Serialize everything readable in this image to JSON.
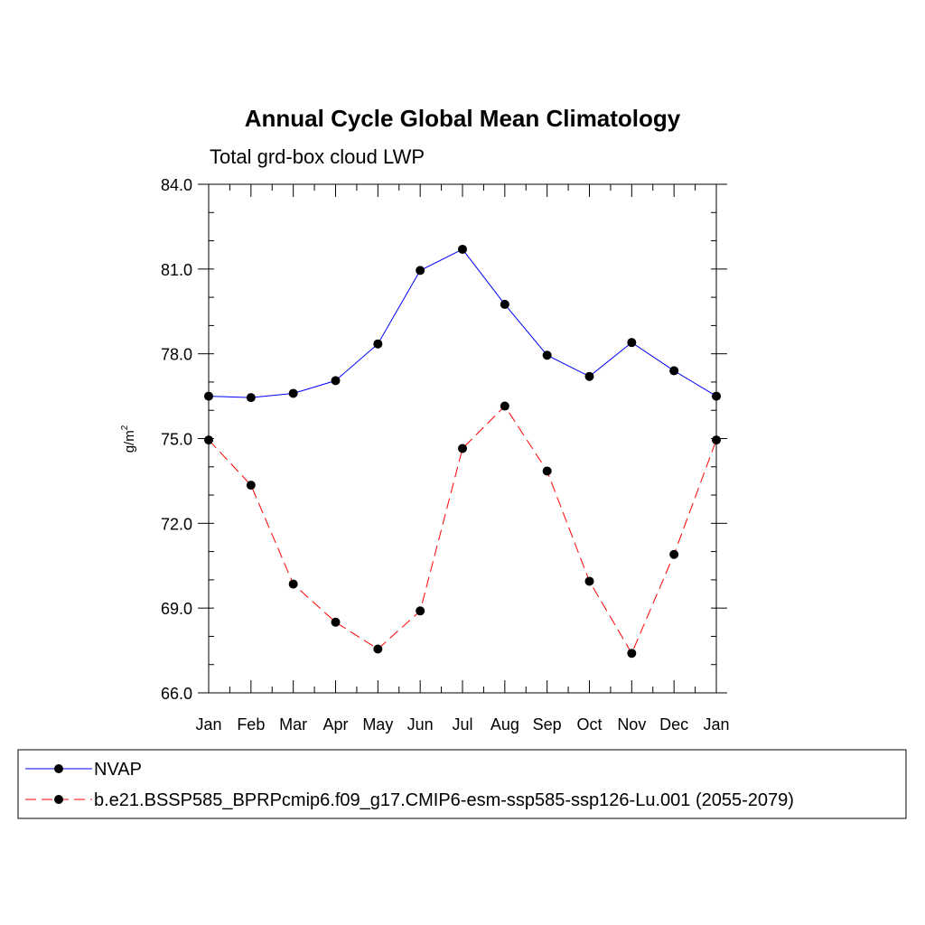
{
  "chart_data": {
    "type": "line",
    "title": "Annual Cycle Global Mean Climatology",
    "subtitle": "Total grd-box cloud LWP",
    "ylabel": "g/m",
    "ylabel_superscript": "2",
    "xlabel": "",
    "categories": [
      "Jan",
      "Feb",
      "Mar",
      "Apr",
      "May",
      "Jun",
      "Jul",
      "Aug",
      "Sep",
      "Oct",
      "Nov",
      "Dec",
      "Jan"
    ],
    "ylim": [
      66.0,
      84.0
    ],
    "yticks": [
      "66.0",
      "69.0",
      "72.0",
      "75.0",
      "78.0",
      "81.0",
      "84.0"
    ],
    "grid": false,
    "legend_position": "bottom",
    "series": [
      {
        "name": "NVAP",
        "color": "#0000ff",
        "dash": "solid",
        "values": [
          76.5,
          76.45,
          76.6,
          77.05,
          78.35,
          80.95,
          81.7,
          79.75,
          77.95,
          77.2,
          78.4,
          77.4,
          76.5
        ]
      },
      {
        "name": "b.e21.BSSP585_BPRPcmip6.f09_g17.CMIP6-esm-ssp585-ssp126-Lu.001 (2055-2079)",
        "color": "#ff0000",
        "dash": "dashed",
        "values": [
          74.95,
          73.35,
          69.85,
          68.5,
          67.55,
          68.9,
          74.65,
          76.15,
          73.85,
          69.95,
          67.4,
          70.9,
          74.95
        ]
      }
    ]
  }
}
